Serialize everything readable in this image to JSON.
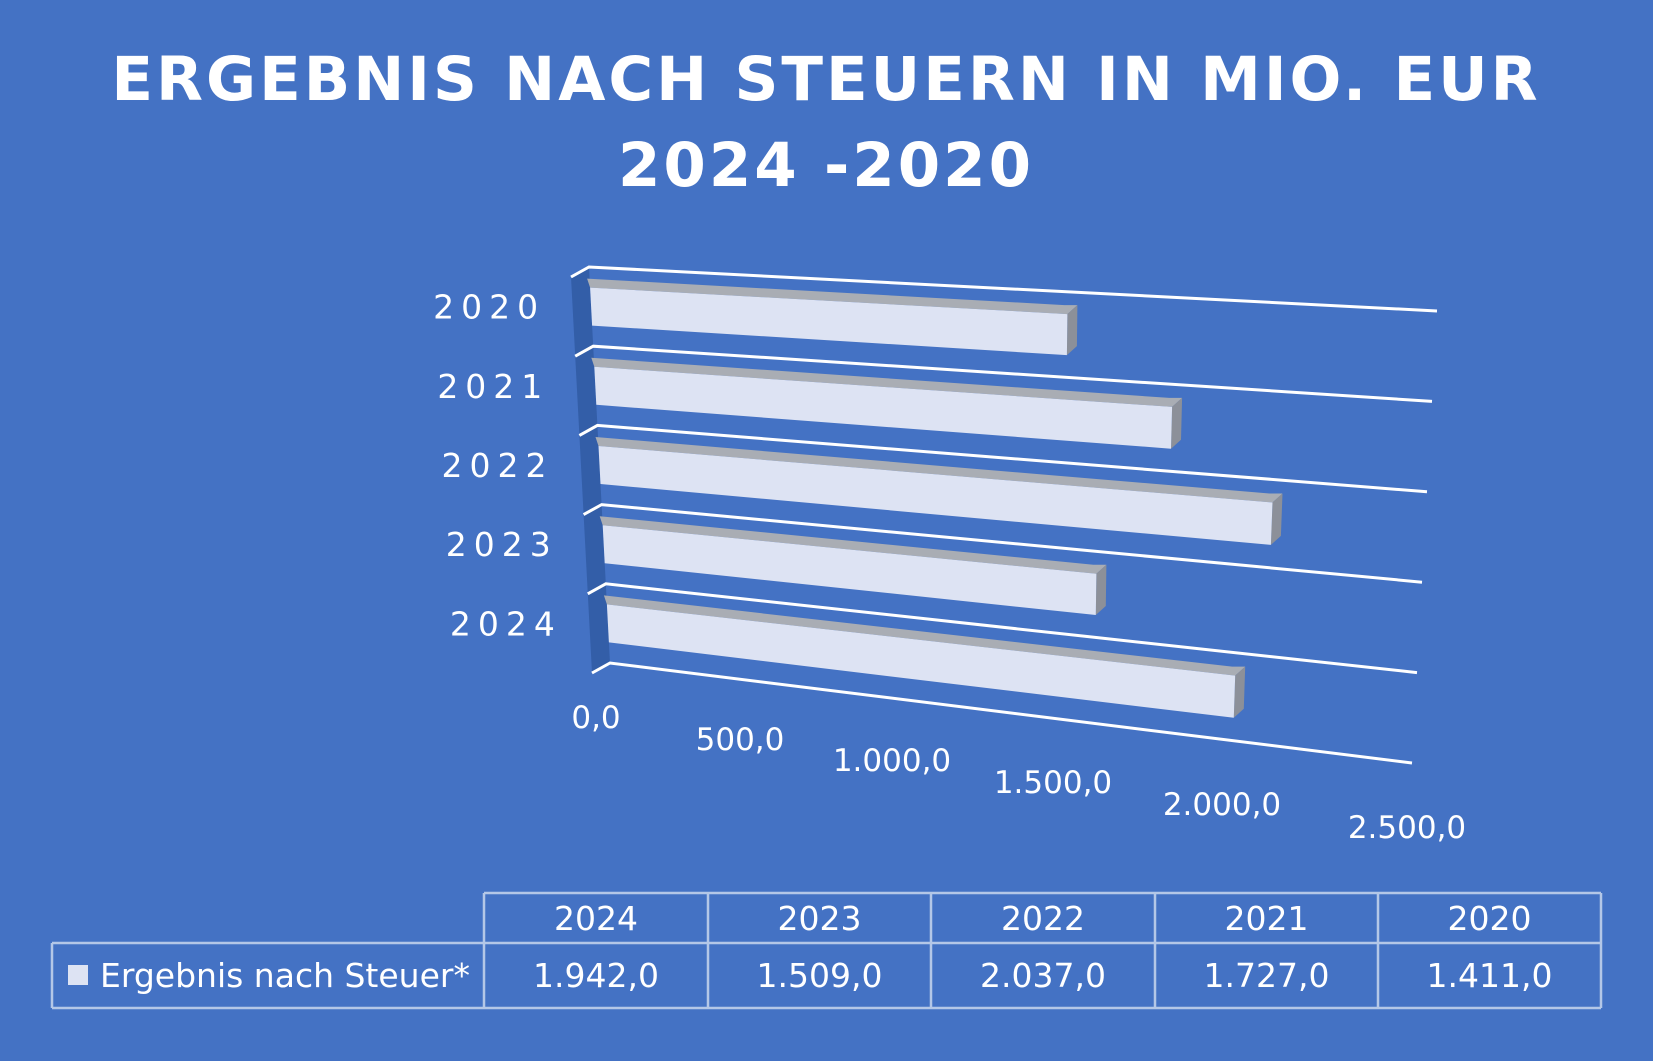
{
  "colors": {
    "background": "#4472c4",
    "bar_face": "#dde3f3",
    "bar_top": "#a9adb4",
    "bar_side": "#8c9099",
    "wall_shadow": "#335ea8",
    "gridline": "#ffffff",
    "text": "#ffffff",
    "table_border": "#b4c7e7"
  },
  "chart_data": {
    "type": "bar",
    "orientation": "horizontal",
    "three_d": true,
    "title": [
      "ERGEBNIS NACH STEUERN IN MIO. EUR",
      "2024 -2020"
    ],
    "categories": [
      "2024",
      "2023",
      "2022",
      "2021",
      "2020"
    ],
    "series": [
      {
        "name": "Ergebnis nach Steuer*",
        "values": [
          1942.0,
          1509.0,
          2037.0,
          1727.0,
          1411.0
        ]
      }
    ],
    "xlim": [
      0,
      2500
    ],
    "x_ticks": [
      "0,0",
      "500,0",
      "1.000,0",
      "1.500,0",
      "2.000,0",
      "2.500,0"
    ],
    "grid": true,
    "data_table": {
      "headers": [
        "2024",
        "2023",
        "2022",
        "2021",
        "2020"
      ],
      "row_label": "Ergebnis nach Steuer*",
      "row_values": [
        "1.942,0",
        "1.509,0",
        "2.037,0",
        "1.727,0",
        "1.411,0"
      ]
    }
  }
}
